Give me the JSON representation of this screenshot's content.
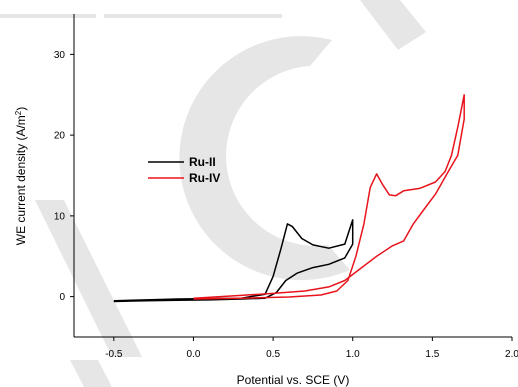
{
  "chart_data": {
    "type": "line",
    "xlabel": "Potential vs. SCE (V)",
    "ylabel": {
      "main": "WE current density (A/m",
      "sup": "2",
      "end": ")"
    },
    "xlim": [
      -0.75,
      2.0
    ],
    "ylim": [
      -5,
      35
    ],
    "xticks": [
      "-0.5",
      "0.0",
      "0.5",
      "1.0",
      "1.5",
      "2.0"
    ],
    "yticks": [
      "0",
      "10",
      "20",
      "30"
    ],
    "legend_position": "center-left",
    "grid": false,
    "series": [
      {
        "name": "Ru-II",
        "color": "#000000",
        "points": [
          [
            -0.5,
            -0.5
          ],
          [
            -0.3,
            -0.4
          ],
          [
            -0.1,
            -0.3
          ],
          [
            0.1,
            -0.25
          ],
          [
            0.3,
            -0.2
          ],
          [
            0.45,
            0.3
          ],
          [
            0.5,
            2.5
          ],
          [
            0.55,
            6.0
          ],
          [
            0.59,
            9.0
          ],
          [
            0.62,
            8.7
          ],
          [
            0.68,
            7.2
          ],
          [
            0.75,
            6.4
          ],
          [
            0.85,
            6.0
          ],
          [
            0.95,
            6.5
          ],
          [
            1.0,
            9.5
          ],
          [
            1.0,
            6.5
          ],
          [
            0.95,
            4.8
          ],
          [
            0.85,
            4.0
          ],
          [
            0.75,
            3.6
          ],
          [
            0.65,
            2.9
          ],
          [
            0.58,
            2.0
          ],
          [
            0.52,
            0.5
          ],
          [
            0.45,
            -0.2
          ],
          [
            0.3,
            -0.3
          ],
          [
            0.1,
            -0.4
          ],
          [
            -0.1,
            -0.45
          ],
          [
            -0.3,
            -0.5
          ],
          [
            -0.5,
            -0.6
          ]
        ]
      },
      {
        "name": "Ru-IV",
        "color": "#e8141c",
        "points": [
          [
            0.0,
            -0.3
          ],
          [
            0.3,
            -0.2
          ],
          [
            0.6,
            -0.05
          ],
          [
            0.8,
            0.2
          ],
          [
            0.9,
            0.7
          ],
          [
            0.97,
            2.0
          ],
          [
            1.02,
            5.0
          ],
          [
            1.07,
            9.0
          ],
          [
            1.11,
            13.5
          ],
          [
            1.15,
            15.2
          ],
          [
            1.19,
            13.8
          ],
          [
            1.23,
            12.6
          ],
          [
            1.27,
            12.5
          ],
          [
            1.32,
            13.1
          ],
          [
            1.42,
            13.4
          ],
          [
            1.52,
            14.2
          ],
          [
            1.58,
            15.5
          ],
          [
            1.62,
            17.5
          ],
          [
            1.66,
            21.0
          ],
          [
            1.7,
            25.0
          ],
          [
            1.7,
            22.0
          ],
          [
            1.66,
            17.5
          ],
          [
            1.6,
            15.5
          ],
          [
            1.52,
            12.7
          ],
          [
            1.44,
            10.6
          ],
          [
            1.38,
            9.0
          ],
          [
            1.32,
            6.9
          ],
          [
            1.25,
            6.3
          ],
          [
            1.15,
            5.0
          ],
          [
            1.05,
            3.5
          ],
          [
            0.95,
            2.0
          ],
          [
            0.85,
            1.2
          ],
          [
            0.7,
            0.7
          ],
          [
            0.5,
            0.4
          ],
          [
            0.3,
            0.15
          ],
          [
            0.0,
            -0.2
          ]
        ]
      }
    ]
  }
}
